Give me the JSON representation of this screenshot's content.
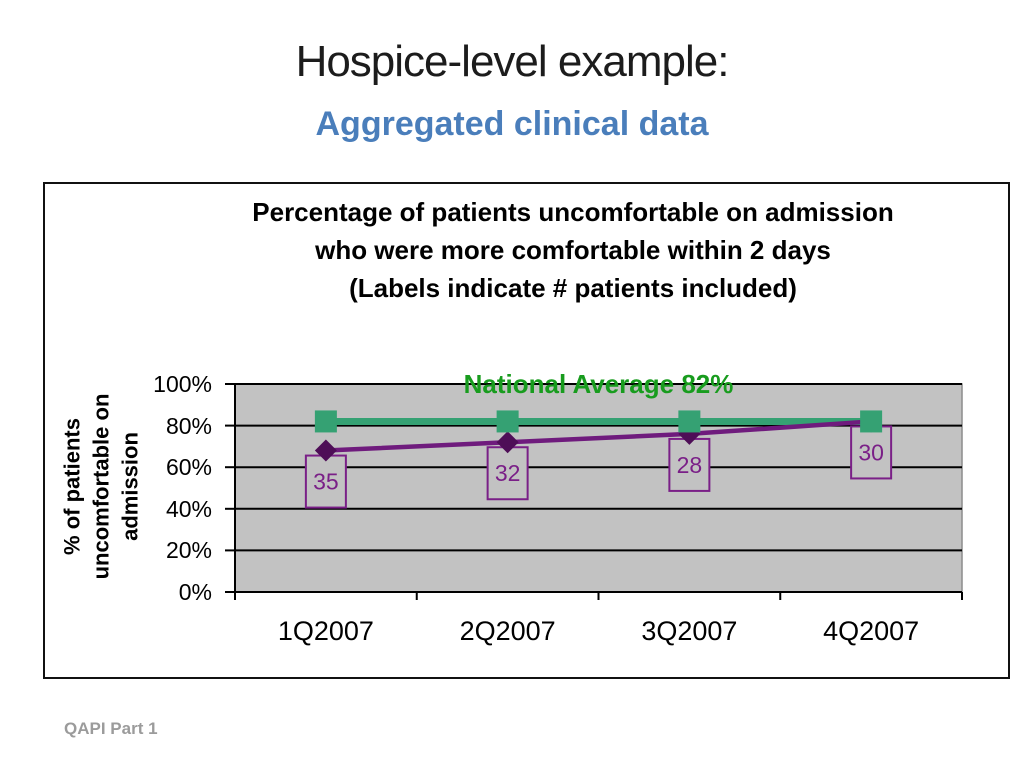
{
  "slide": {
    "title": "Hospice-level example:",
    "subtitle": "Aggregated clinical data",
    "footer": "QAPI Part 1"
  },
  "colors": {
    "title_text": "#1c1c1c",
    "subtitle_blue": "#4a7ebb",
    "annotation_green": "#189c1e",
    "series_green": "#35a173",
    "series_purple": "#6f1b7d",
    "marker_purple": "#4e0e57",
    "label_purple": "#7a1f87",
    "plot_bg": "#c2c2c2",
    "plot_border": "#8c8c8c",
    "grid_black": "#000000",
    "footer_gray": "#9b9b9b"
  },
  "chart_data": {
    "type": "line",
    "title_lines": [
      "Percentage of patients uncomfortable on admission",
      "who were more comfortable within 2 days",
      "(Labels indicate # patients included)"
    ],
    "ylabel_lines": [
      "% of patients",
      "uncomfortable on",
      "admission"
    ],
    "categories": [
      "1Q2007",
      "2Q2007",
      "3Q2007",
      "4Q2007"
    ],
    "yticks": [
      "0%",
      "20%",
      "40%",
      "60%",
      "80%",
      "100%"
    ],
    "ylim": [
      0,
      100
    ],
    "grid": "horizontal",
    "legend": "none",
    "plot_background": "gray",
    "annotation": "National Average 82%",
    "series": [
      {
        "id": "national-average",
        "marker": "square",
        "values": [
          82,
          82,
          82,
          82
        ]
      },
      {
        "id": "hospice-results",
        "marker": "diamond",
        "values": [
          68,
          72,
          76,
          82
        ]
      }
    ],
    "point_labels": [
      "35",
      "32",
      "28",
      "30"
    ]
  }
}
